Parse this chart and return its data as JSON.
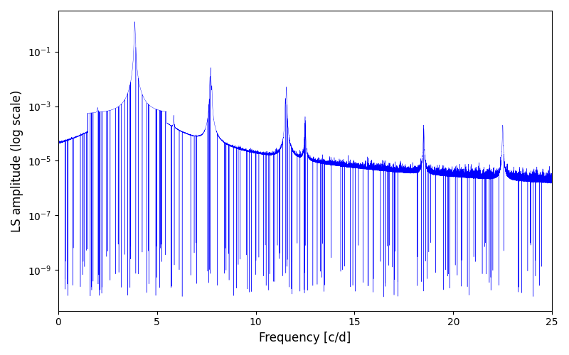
{
  "xlabel": "Frequency [c/d]",
  "ylabel": "LS amplitude (log scale)",
  "line_color": "#0000ff",
  "xlim": [
    0,
    25
  ],
  "ylim_log": [
    -10.5,
    0.5
  ],
  "background_color": "#ffffff",
  "figsize": [
    8.0,
    5.0
  ],
  "dpi": 100
}
